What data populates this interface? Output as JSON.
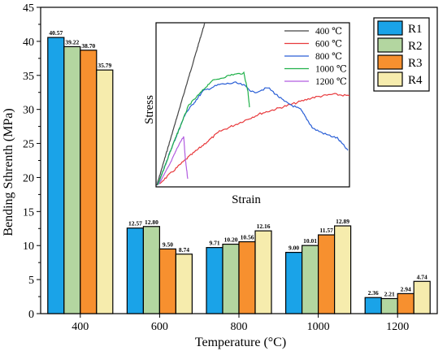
{
  "colors": {
    "R1": "#1aa3e8",
    "R2": "#b3d6a0",
    "R3": "#f7902f",
    "R4": "#f6ecad"
  },
  "chart_data": [
    {
      "type": "bar",
      "title": "",
      "xlabel": "Temperature (°C)",
      "ylabel": "Bending Sthrenth (MPa)",
      "categories": [
        "400",
        "600",
        "800",
        "1000",
        "1200"
      ],
      "ylim": [
        0,
        45
      ],
      "yticks": [
        "0",
        "5",
        "10",
        "15",
        "20",
        "25",
        "30",
        "35",
        "40",
        "45"
      ],
      "legend_position": "top-right",
      "series": [
        {
          "name": "R1",
          "values": [
            40.57,
            12.57,
            9.71,
            9.0,
            2.36
          ],
          "labels": [
            "40.57",
            "12.57",
            "9.71",
            "9.00",
            "2.36"
          ]
        },
        {
          "name": "R2",
          "values": [
            39.22,
            12.8,
            10.2,
            10.01,
            2.21
          ],
          "labels": [
            "39.22",
            "12.80",
            "10.20",
            "10.01",
            "2.21"
          ]
        },
        {
          "name": "R3",
          "values": [
            38.7,
            9.5,
            10.56,
            11.57,
            2.94
          ],
          "labels": [
            "38.70",
            "9.50",
            "10.56",
            "11.57",
            "2.94"
          ]
        },
        {
          "name": "R4",
          "values": [
            35.79,
            8.74,
            12.16,
            12.89,
            4.74
          ],
          "labels": [
            "35.79",
            "8.74",
            "12.16",
            "12.89",
            "4.74"
          ]
        }
      ]
    },
    {
      "type": "line",
      "xlabel": "Strain",
      "ylabel": "Stress",
      "legend_position": "top-right",
      "axes_ticks": false,
      "series": [
        {
          "name": "400 ℃",
          "color": "#444444"
        },
        {
          "name": "600 ℃",
          "color": "#e8393c"
        },
        {
          "name": "800 ℃",
          "color": "#2a5fd6"
        },
        {
          "name": "1000 ℃",
          "color": "#21b14b"
        },
        {
          "name": "1200 ℃",
          "color": "#b25de0"
        }
      ]
    }
  ]
}
